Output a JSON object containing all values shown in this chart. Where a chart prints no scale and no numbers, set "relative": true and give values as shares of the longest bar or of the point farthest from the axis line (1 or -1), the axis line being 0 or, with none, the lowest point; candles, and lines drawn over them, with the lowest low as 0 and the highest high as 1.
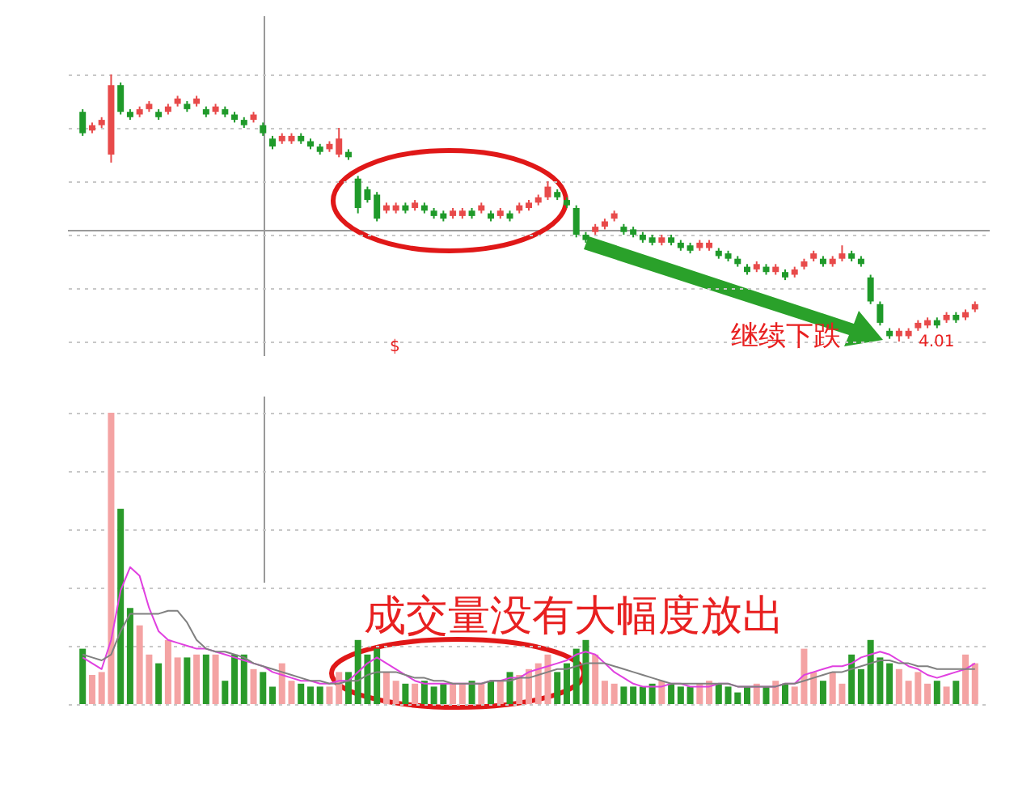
{
  "chart_data": [
    {
      "type": "candlestick",
      "relative": true,
      "grid": true,
      "categories": [
        null,
        null,
        null,
        null,
        null,
        null,
        null,
        null,
        null,
        null,
        null,
        null,
        null,
        null,
        null,
        null,
        null,
        null,
        null,
        null,
        null,
        null,
        null,
        null,
        null,
        null,
        null,
        null,
        null,
        null,
        null,
        null,
        null,
        null,
        null,
        null,
        null,
        null,
        null,
        null,
        null,
        null,
        null,
        null,
        null,
        null,
        null,
        null,
        null,
        null,
        null,
        null,
        null,
        null,
        null,
        null,
        null,
        null,
        null,
        null,
        null,
        null,
        null,
        null,
        null,
        null,
        null,
        null,
        null,
        null,
        null,
        null,
        null,
        null,
        null,
        null,
        null,
        null,
        null,
        null,
        null,
        null,
        null,
        null,
        null,
        null,
        null,
        null,
        null,
        null,
        null,
        null,
        null,
        null,
        null
      ],
      "ohlc": [
        [
          0.86,
          0.87,
          0.77,
          0.78
        ],
        [
          0.79,
          0.82,
          0.78,
          0.81
        ],
        [
          0.81,
          0.84,
          0.8,
          0.83
        ],
        [
          0.7,
          1,
          0.67,
          0.96
        ],
        [
          0.96,
          0.97,
          0.85,
          0.86
        ],
        [
          0.86,
          0.87,
          0.83,
          0.84
        ],
        [
          0.85,
          0.88,
          0.84,
          0.87
        ],
        [
          0.87,
          0.9,
          0.86,
          0.89
        ],
        [
          0.86,
          0.87,
          0.83,
          0.84
        ],
        [
          0.86,
          0.89,
          0.85,
          0.88
        ],
        [
          0.89,
          0.92,
          0.88,
          0.91
        ],
        [
          0.89,
          0.9,
          0.86,
          0.87
        ],
        [
          0.89,
          0.92,
          0.88,
          0.91
        ],
        [
          0.87,
          0.88,
          0.84,
          0.85
        ],
        [
          0.86,
          0.89,
          0.85,
          0.88
        ],
        [
          0.87,
          0.88,
          0.84,
          0.85
        ],
        [
          0.85,
          0.86,
          0.82,
          0.83
        ],
        [
          0.83,
          0.84,
          0.8,
          0.81
        ],
        [
          0.83,
          0.86,
          0.82,
          0.85
        ],
        [
          0.81,
          0.82,
          0.77,
          0.78
        ],
        [
          0.76,
          0.77,
          0.72,
          0.73
        ],
        [
          0.75,
          0.78,
          0.74,
          0.77
        ],
        [
          0.75,
          0.78,
          0.74,
          0.77
        ],
        [
          0.77,
          0.78,
          0.74,
          0.75
        ],
        [
          0.75,
          0.76,
          0.72,
          0.73
        ],
        [
          0.73,
          0.74,
          0.7,
          0.71
        ],
        [
          0.72,
          0.75,
          0.71,
          0.74
        ],
        [
          0.7,
          0.8,
          0.69,
          0.76
        ],
        [
          0.71,
          0.72,
          0.68,
          0.69
        ],
        [
          0.61,
          0.62,
          0.48,
          0.5
        ],
        [
          0.57,
          0.58,
          0.52,
          0.53
        ],
        [
          0.55,
          0.56,
          0.45,
          0.46
        ],
        [
          0.49,
          0.52,
          0.48,
          0.51
        ],
        [
          0.49,
          0.52,
          0.48,
          0.51
        ],
        [
          0.51,
          0.52,
          0.48,
          0.49
        ],
        [
          0.5,
          0.53,
          0.49,
          0.52
        ],
        [
          0.51,
          0.52,
          0.48,
          0.49
        ],
        [
          0.49,
          0.5,
          0.46,
          0.47
        ],
        [
          0.48,
          0.49,
          0.45,
          0.46
        ],
        [
          0.47,
          0.5,
          0.46,
          0.49
        ],
        [
          0.47,
          0.5,
          0.46,
          0.49
        ],
        [
          0.49,
          0.5,
          0.46,
          0.47
        ],
        [
          0.49,
          0.52,
          0.48,
          0.51
        ],
        [
          0.48,
          0.49,
          0.45,
          0.46
        ],
        [
          0.47,
          0.5,
          0.46,
          0.49
        ],
        [
          0.48,
          0.49,
          0.45,
          0.46
        ],
        [
          0.49,
          0.52,
          0.48,
          0.51
        ],
        [
          0.5,
          0.53,
          0.49,
          0.52
        ],
        [
          0.52,
          0.55,
          0.51,
          0.54
        ],
        [
          0.54,
          0.6,
          0.53,
          0.58
        ],
        [
          0.56,
          0.57,
          0.53,
          0.54
        ],
        [
          0.53,
          0.54,
          0.5,
          0.51
        ],
        [
          0.5,
          0.51,
          0.39,
          0.4
        ],
        [
          0.4,
          0.41,
          0.37,
          0.38
        ],
        [
          0.41,
          0.44,
          0.4,
          0.43
        ],
        [
          0.43,
          0.46,
          0.42,
          0.45
        ],
        [
          0.46,
          0.49,
          0.45,
          0.48
        ],
        [
          0.43,
          0.44,
          0.4,
          0.41
        ],
        [
          0.42,
          0.43,
          0.39,
          0.4
        ],
        [
          0.4,
          0.41,
          0.37,
          0.38
        ],
        [
          0.39,
          0.4,
          0.36,
          0.37
        ],
        [
          0.37,
          0.4,
          0.36,
          0.39
        ],
        [
          0.39,
          0.4,
          0.36,
          0.37
        ],
        [
          0.37,
          0.38,
          0.34,
          0.35
        ],
        [
          0.36,
          0.37,
          0.33,
          0.34
        ],
        [
          0.35,
          0.38,
          0.34,
          0.37
        ],
        [
          0.35,
          0.38,
          0.34,
          0.37
        ],
        [
          0.34,
          0.35,
          0.31,
          0.32
        ],
        [
          0.33,
          0.34,
          0.3,
          0.31
        ],
        [
          0.31,
          0.32,
          0.28,
          0.29
        ],
        [
          0.28,
          0.29,
          0.25,
          0.26
        ],
        [
          0.27,
          0.3,
          0.26,
          0.29
        ],
        [
          0.28,
          0.29,
          0.25,
          0.26
        ],
        [
          0.26,
          0.29,
          0.25,
          0.28
        ],
        [
          0.26,
          0.27,
          0.23,
          0.24
        ],
        [
          0.25,
          0.28,
          0.24,
          0.27
        ],
        [
          0.28,
          0.31,
          0.27,
          0.3
        ],
        [
          0.31,
          0.34,
          0.3,
          0.33
        ],
        [
          0.31,
          0.32,
          0.28,
          0.29
        ],
        [
          0.29,
          0.32,
          0.28,
          0.31
        ],
        [
          0.31,
          0.36,
          0.3,
          0.33
        ],
        [
          0.33,
          0.34,
          0.3,
          0.31
        ],
        [
          0.31,
          0.32,
          0.28,
          0.29
        ],
        [
          0.24,
          0.25,
          0.14,
          0.15
        ],
        [
          0.14,
          0.15,
          0.06,
          0.07
        ],
        [
          0.04,
          0.05,
          0.01,
          0.02
        ],
        [
          0.02,
          0.05,
          0,
          0.04
        ],
        [
          0.02,
          0.05,
          0.01,
          0.04
        ],
        [
          0.05,
          0.08,
          0.04,
          0.07
        ],
        [
          0.06,
          0.09,
          0.05,
          0.08
        ],
        [
          0.08,
          0.09,
          0.05,
          0.06
        ],
        [
          0.08,
          0.11,
          0.07,
          0.1
        ],
        [
          0.1,
          0.11,
          0.07,
          0.08
        ],
        [
          0.09,
          0.12,
          0.08,
          0.11
        ],
        [
          0.12,
          0.15,
          0.11,
          0.14
        ]
      ],
      "colors": [
        "#1f9a2a",
        "#e84a4a",
        "#e84a4a",
        "#e84a4a",
        "#1f9a2a",
        "#1f9a2a",
        "#e84a4a",
        "#e84a4a",
        "#1f9a2a",
        "#e84a4a",
        "#e84a4a",
        "#1f9a2a",
        "#e84a4a",
        "#1f9a2a",
        "#e84a4a",
        "#1f9a2a",
        "#1f9a2a",
        "#1f9a2a",
        "#e84a4a",
        "#1f9a2a",
        "#1f9a2a",
        "#e84a4a",
        "#e84a4a",
        "#1f9a2a",
        "#1f9a2a",
        "#1f9a2a",
        "#e84a4a",
        "#e84a4a",
        "#1f9a2a",
        "#1f9a2a",
        "#1f9a2a",
        "#1f9a2a",
        "#e84a4a",
        "#e84a4a",
        "#1f9a2a",
        "#e84a4a",
        "#1f9a2a",
        "#1f9a2a",
        "#1f9a2a",
        "#e84a4a",
        "#e84a4a",
        "#1f9a2a",
        "#e84a4a",
        "#1f9a2a",
        "#e84a4a",
        "#1f9a2a",
        "#e84a4a",
        "#e84a4a",
        "#e84a4a",
        "#e84a4a",
        "#1f9a2a",
        "#1f9a2a",
        "#1f9a2a",
        "#1f9a2a",
        "#e84a4a",
        "#e84a4a",
        "#e84a4a",
        "#1f9a2a",
        "#1f9a2a",
        "#1f9a2a",
        "#1f9a2a",
        "#e84a4a",
        "#1f9a2a",
        "#1f9a2a",
        "#1f9a2a",
        "#e84a4a",
        "#e84a4a",
        "#1f9a2a",
        "#1f9a2a",
        "#1f9a2a",
        "#1f9a2a",
        "#e84a4a",
        "#1f9a2a",
        "#e84a4a",
        "#1f9a2a",
        "#e84a4a",
        "#e84a4a",
        "#e84a4a",
        "#1f9a2a",
        "#e84a4a",
        "#e84a4a",
        "#1f9a2a",
        "#1f9a2a",
        "#1f9a2a",
        "#1f9a2a",
        "#1f9a2a",
        "#e84a4a",
        "#e84a4a",
        "#e84a4a",
        "#e84a4a",
        "#1f9a2a",
        "#e84a4a",
        "#1f9a2a",
        "#e84a4a",
        "#e84a4a"
      ],
      "annotations": [
        "继续下跌",
        "4.01",
        "$"
      ]
    },
    {
      "type": "bar",
      "relative": true,
      "grid": true,
      "categories": [
        null,
        null,
        null,
        null,
        null,
        null,
        null,
        null,
        null,
        null,
        null,
        null,
        null,
        null,
        null,
        null,
        null,
        null,
        null,
        null,
        null,
        null,
        null,
        null,
        null,
        null,
        null,
        null,
        null,
        null,
        null,
        null,
        null,
        null,
        null,
        null,
        null,
        null,
        null,
        null,
        null,
        null,
        null,
        null,
        null,
        null,
        null,
        null,
        null,
        null,
        null,
        null,
        null,
        null,
        null,
        null,
        null,
        null,
        null,
        null,
        null,
        null,
        null,
        null,
        null,
        null,
        null,
        null,
        null,
        null,
        null,
        null,
        null,
        null,
        null,
        null,
        null,
        null,
        null,
        null,
        null,
        null,
        null,
        null,
        null,
        null,
        null,
        null,
        null,
        null,
        null,
        null,
        null,
        null,
        null
      ],
      "series": [
        {
          "type": "bar",
          "values": [
            0.19,
            0.1,
            0.11,
            1,
            0.67,
            0.33,
            0.27,
            0.17,
            0.14,
            0.22,
            0.16,
            0.16,
            0.17,
            0.17,
            0.17,
            0.08,
            0.17,
            0.17,
            0.12,
            0.11,
            0.06,
            0.14,
            0.08,
            0.07,
            0.06,
            0.06,
            0.06,
            0.11,
            0.11,
            0.22,
            0.17,
            0.19,
            0.11,
            0.08,
            0.07,
            0.07,
            0.08,
            0.06,
            0.07,
            0.07,
            0.07,
            0.08,
            0.07,
            0.08,
            0.08,
            0.11,
            0.1,
            0.12,
            0.14,
            0.17,
            0.11,
            0.14,
            0.19,
            0.22,
            0.17,
            0.08,
            0.07,
            0.06,
            0.06,
            0.06,
            0.07,
            0.08,
            0.07,
            0.06,
            0.06,
            0.07,
            0.08,
            0.07,
            0.06,
            0.04,
            0.06,
            0.07,
            0.06,
            0.08,
            0.07,
            0.06,
            0.19,
            0.11,
            0.08,
            0.11,
            0.07,
            0.17,
            0.12,
            0.22,
            0.16,
            0.14,
            0.12,
            0.08,
            0.11,
            0.07,
            0.08,
            0.06,
            0.08,
            0.17,
            0.14
          ],
          "colors": [
            "#2a9a2a",
            "#f4a3a3",
            "#f4a3a3",
            "#f4a3a3",
            "#2a9a2a",
            "#2a9a2a",
            "#f4a3a3",
            "#f4a3a3",
            "#2a9a2a",
            "#f4a3a3",
            "#f4a3a3",
            "#2a9a2a",
            "#f4a3a3",
            "#2a9a2a",
            "#f4a3a3",
            "#2a9a2a",
            "#2a9a2a",
            "#2a9a2a",
            "#f4a3a3",
            "#2a9a2a",
            "#2a9a2a",
            "#f4a3a3",
            "#f4a3a3",
            "#2a9a2a",
            "#2a9a2a",
            "#2a9a2a",
            "#f4a3a3",
            "#f4a3a3",
            "#2a9a2a",
            "#2a9a2a",
            "#2a9a2a",
            "#2a9a2a",
            "#f4a3a3",
            "#f4a3a3",
            "#2a9a2a",
            "#f4a3a3",
            "#2a9a2a",
            "#2a9a2a",
            "#2a9a2a",
            "#f4a3a3",
            "#f4a3a3",
            "#2a9a2a",
            "#f4a3a3",
            "#2a9a2a",
            "#f4a3a3",
            "#2a9a2a",
            "#f4a3a3",
            "#f4a3a3",
            "#f4a3a3",
            "#f4a3a3",
            "#2a9a2a",
            "#2a9a2a",
            "#2a9a2a",
            "#2a9a2a",
            "#f4a3a3",
            "#f4a3a3",
            "#f4a3a3",
            "#2a9a2a",
            "#2a9a2a",
            "#2a9a2a",
            "#2a9a2a",
            "#f4a3a3",
            "#2a9a2a",
            "#2a9a2a",
            "#2a9a2a",
            "#f4a3a3",
            "#f4a3a3",
            "#2a9a2a",
            "#2a9a2a",
            "#2a9a2a",
            "#2a9a2a",
            "#f4a3a3",
            "#2a9a2a",
            "#f4a3a3",
            "#2a9a2a",
            "#f4a3a3",
            "#f4a3a3",
            "#f4a3a3",
            "#2a9a2a",
            "#f4a3a3",
            "#f4a3a3",
            "#2a9a2a",
            "#2a9a2a",
            "#2a9a2a",
            "#2a9a2a",
            "#2a9a2a",
            "#f4a3a3",
            "#f4a3a3",
            "#f4a3a3",
            "#f4a3a3",
            "#2a9a2a",
            "#f4a3a3",
            "#2a9a2a",
            "#f4a3a3",
            "#f4a3a3"
          ]
        },
        {
          "type": "line",
          "color": "#e040e0",
          "values": [
            0.16,
            0.14,
            0.12,
            0.22,
            0.39,
            0.47,
            0.44,
            0.33,
            0.25,
            0.22,
            0.21,
            0.2,
            0.19,
            0.19,
            0.18,
            0.17,
            0.16,
            0.15,
            0.14,
            0.13,
            0.11,
            0.1,
            0.09,
            0.08,
            0.08,
            0.07,
            0.07,
            0.08,
            0.08,
            0.11,
            0.14,
            0.16,
            0.14,
            0.12,
            0.1,
            0.08,
            0.07,
            0.07,
            0.07,
            0.07,
            0.07,
            0.07,
            0.07,
            0.08,
            0.08,
            0.09,
            0.09,
            0.11,
            0.12,
            0.13,
            0.14,
            0.15,
            0.17,
            0.18,
            0.17,
            0.14,
            0.11,
            0.09,
            0.07,
            0.06,
            0.06,
            0.06,
            0.07,
            0.07,
            0.06,
            0.06,
            0.06,
            0.07,
            0.07,
            0.06,
            0.06,
            0.06,
            0.06,
            0.06,
            0.07,
            0.07,
            0.1,
            0.11,
            0.12,
            0.13,
            0.13,
            0.14,
            0.16,
            0.17,
            0.18,
            0.17,
            0.15,
            0.13,
            0.12,
            0.1,
            0.09,
            0.1,
            0.11,
            0.12,
            0.14
          ]
        },
        {
          "type": "line",
          "color": "#808080",
          "values": [
            0.17,
            0.16,
            0.15,
            0.17,
            0.25,
            0.31,
            0.31,
            0.31,
            0.31,
            0.32,
            0.32,
            0.28,
            0.22,
            0.19,
            0.18,
            0.18,
            0.17,
            0.16,
            0.14,
            0.13,
            0.12,
            0.11,
            0.1,
            0.09,
            0.08,
            0.08,
            0.07,
            0.07,
            0.08,
            0.08,
            0.1,
            0.11,
            0.11,
            0.11,
            0.1,
            0.09,
            0.09,
            0.08,
            0.08,
            0.07,
            0.07,
            0.07,
            0.07,
            0.08,
            0.08,
            0.08,
            0.09,
            0.09,
            0.1,
            0.11,
            0.12,
            0.12,
            0.13,
            0.14,
            0.14,
            0.14,
            0.13,
            0.12,
            0.11,
            0.1,
            0.09,
            0.08,
            0.07,
            0.07,
            0.07,
            0.07,
            0.07,
            0.07,
            0.07,
            0.06,
            0.06,
            0.06,
            0.06,
            0.06,
            0.07,
            0.07,
            0.08,
            0.09,
            0.1,
            0.11,
            0.11,
            0.12,
            0.13,
            0.14,
            0.15,
            0.15,
            0.14,
            0.14,
            0.13,
            0.13,
            0.12,
            0.12,
            0.12,
            0.12,
            0.12
          ]
        }
      ],
      "annotations": [
        "成交量没有大幅度放出"
      ]
    }
  ]
}
